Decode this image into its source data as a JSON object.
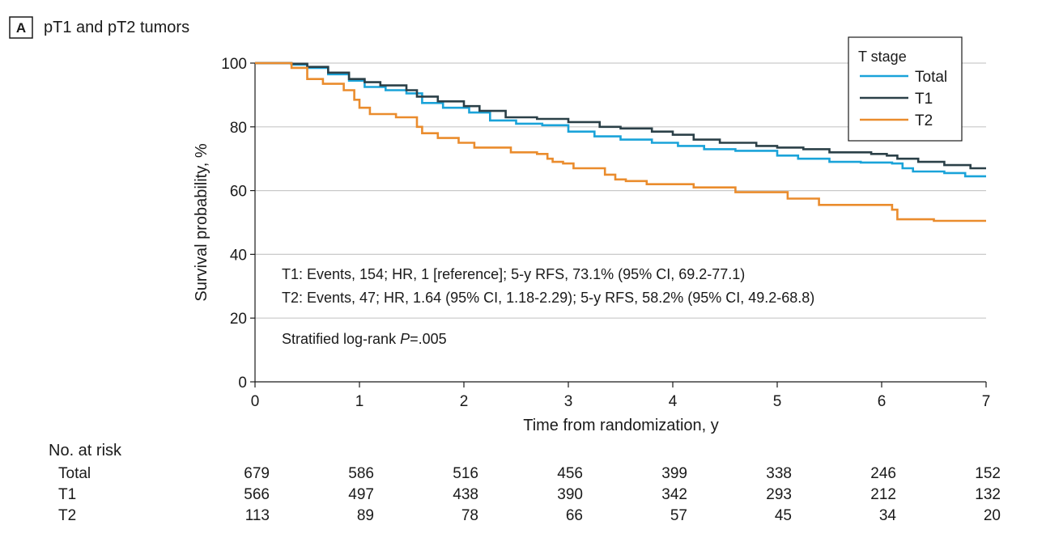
{
  "panel": {
    "letter": "A",
    "title": "pT1 and pT2 tumors"
  },
  "chart_data": {
    "type": "line",
    "subtype": "kaplan-meier step",
    "xlabel": "Time from randomization, y",
    "ylabel": "Survival probability, %",
    "xlim": [
      0,
      7
    ],
    "ylim": [
      0,
      100
    ],
    "xticks": [
      0,
      1,
      2,
      3,
      4,
      5,
      6,
      7
    ],
    "yticks": [
      0,
      20,
      40,
      60,
      80,
      100
    ],
    "grid": "horizontal",
    "legend": {
      "title": "T stage",
      "placement": "top-right",
      "entries": [
        "Total",
        "T1",
        "T2"
      ]
    },
    "series": [
      {
        "name": "Total",
        "color": "#1aa3d9",
        "x": [
          0,
          0.35,
          0.5,
          0.7,
          0.9,
          1.05,
          1.25,
          1.45,
          1.6,
          1.8,
          2.05,
          2.25,
          2.5,
          2.75,
          3.0,
          3.25,
          3.5,
          3.8,
          4.05,
          4.3,
          4.6,
          5.0,
          5.2,
          5.5,
          5.8,
          6.1,
          6.2,
          6.3,
          6.6,
          6.8,
          7.0
        ],
        "y": [
          100,
          99.5,
          98.5,
          96.5,
          94.5,
          92.5,
          91.5,
          90.5,
          87.5,
          86,
          84.5,
          82,
          81,
          80.5,
          78.5,
          77,
          76,
          75,
          74,
          73,
          72.5,
          71,
          70,
          69,
          68.8,
          68.5,
          67,
          66,
          65.5,
          64.5,
          64.5
        ]
      },
      {
        "name": "T1",
        "color": "#2b4048",
        "x": [
          0,
          0.35,
          0.5,
          0.7,
          0.9,
          1.05,
          1.2,
          1.45,
          1.55,
          1.75,
          2.0,
          2.15,
          2.4,
          2.7,
          3.0,
          3.3,
          3.5,
          3.8,
          4.0,
          4.2,
          4.45,
          4.8,
          5.0,
          5.25,
          5.5,
          5.9,
          6.05,
          6.15,
          6.35,
          6.6,
          6.85,
          7.0
        ],
        "y": [
          100,
          99.8,
          98.8,
          97,
          95,
          94,
          93,
          91.5,
          89.5,
          88,
          86.5,
          85,
          83,
          82.5,
          81.5,
          80,
          79.5,
          78.5,
          77.5,
          76,
          75,
          74,
          73.5,
          73,
          72,
          71.5,
          71,
          70,
          69,
          68,
          67,
          67
        ]
      },
      {
        "name": "T2",
        "color": "#ea8c2d",
        "x": [
          0,
          0.35,
          0.5,
          0.65,
          0.85,
          0.95,
          1.0,
          1.1,
          1.35,
          1.55,
          1.6,
          1.75,
          1.95,
          2.1,
          2.45,
          2.7,
          2.8,
          2.85,
          2.95,
          3.05,
          3.35,
          3.45,
          3.55,
          3.75,
          4.2,
          4.6,
          5.1,
          5.4,
          6.0,
          6.1,
          6.15,
          6.5,
          7.0
        ],
        "y": [
          100,
          98.5,
          95,
          93.5,
          91.5,
          88.5,
          86,
          84,
          83,
          80,
          78,
          76.5,
          75,
          73.5,
          72,
          71.5,
          70,
          69,
          68.5,
          67,
          65,
          63.5,
          63,
          62,
          61,
          59.5,
          57.5,
          55.5,
          55.5,
          54,
          51,
          50.5,
          50.5
        ]
      }
    ],
    "annotations": [
      "T1: Events, 154; HR, 1 [reference]; 5-y RFS, 73.1% (95% CI, 69.2-77.1)",
      "T2: Events, 47; HR, 1.64 (95% CI, 1.18-2.29); 5-y RFS, 58.2% (95% CI, 49.2-68.8)"
    ],
    "logrank": {
      "prefix": "Stratified log-rank ",
      "p_symbol": "P",
      "value": "=.005"
    }
  },
  "risk_table": {
    "title": "No. at risk",
    "rows": [
      {
        "label": "Total",
        "values": [
          679,
          586,
          516,
          456,
          399,
          338,
          246,
          152
        ]
      },
      {
        "label": "T1",
        "values": [
          566,
          497,
          438,
          390,
          342,
          293,
          212,
          132
        ]
      },
      {
        "label": "T2",
        "values": [
          113,
          89,
          78,
          66,
          57,
          45,
          34,
          20
        ]
      }
    ]
  }
}
